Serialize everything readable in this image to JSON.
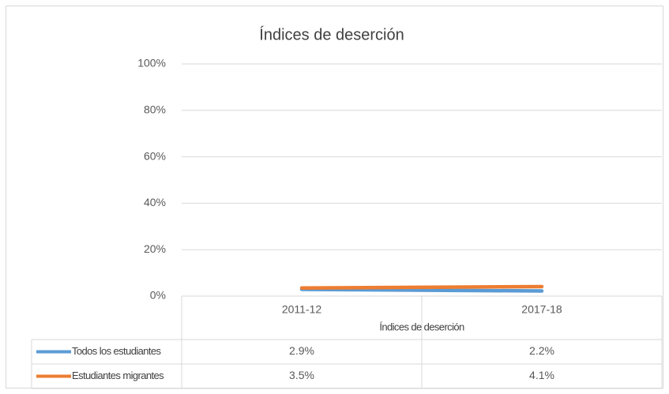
{
  "chart_data": {
    "type": "line",
    "title": "Índices de deserción",
    "x_label": "Índices de deserción",
    "categories": [
      "2011-12",
      "2017-18"
    ],
    "series": [
      {
        "name": "Todos los estudiantes",
        "color": "#5b9bd5",
        "values": [
          2.9,
          2.2
        ],
        "value_labels": [
          "2.9%",
          "2.2%"
        ]
      },
      {
        "name": "Estudiantes migrantes",
        "color": "#ed7d31",
        "values": [
          3.5,
          4.1
        ],
        "value_labels": [
          "3.5%",
          "4.1%"
        ]
      }
    ],
    "ylim": [
      0,
      100
    ],
    "yticks": [
      {
        "value": 0,
        "label": "0%"
      },
      {
        "value": 20,
        "label": "20%"
      },
      {
        "value": 40,
        "label": "40%"
      },
      {
        "value": 60,
        "label": "60%"
      },
      {
        "value": 80,
        "label": "80%"
      },
      {
        "value": 100,
        "label": "100%"
      }
    ],
    "grid": true
  }
}
